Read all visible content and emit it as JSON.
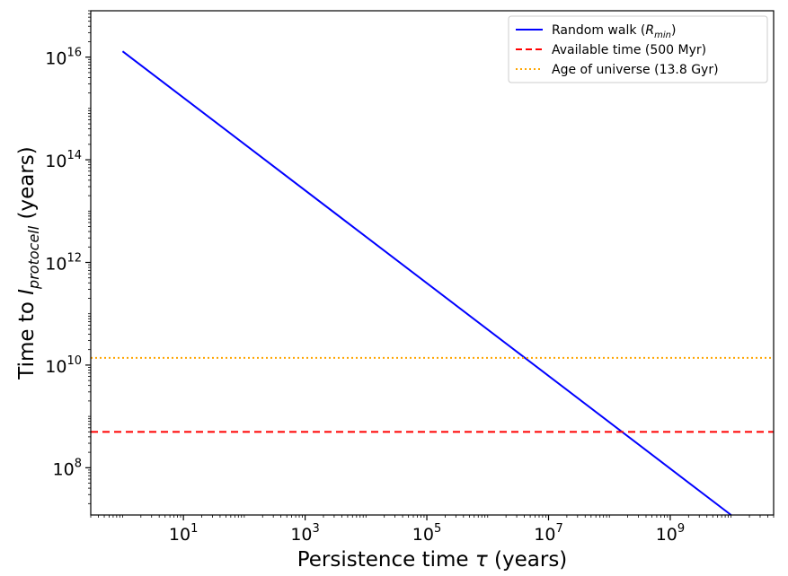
{
  "chart_data": {
    "type": "line",
    "x_scale": "log",
    "y_scale": "log",
    "xlim": [
      0.3,
      50000000000
    ],
    "ylim": [
      12000000,
      80000000000000000
    ],
    "xlabel": {
      "main": "Persistence time ",
      "sym": "τ",
      "unit": " (years)"
    },
    "ylabel": {
      "main": "Time to ",
      "sym": "I",
      "sub": "protocell",
      "unit": " (years)"
    },
    "x_ticks": [
      {
        "base": "10",
        "exp": "1",
        "value": 10
      },
      {
        "base": "10",
        "exp": "3",
        "value": 1000
      },
      {
        "base": "10",
        "exp": "5",
        "value": 100000
      },
      {
        "base": "10",
        "exp": "7",
        "value": 10000000
      },
      {
        "base": "10",
        "exp": "9",
        "value": 1000000000
      }
    ],
    "y_ticks": [
      {
        "base": "10",
        "exp": "8",
        "value": 100000000
      },
      {
        "base": "10",
        "exp": "10",
        "value": 10000000000
      },
      {
        "base": "10",
        "exp": "12",
        "value": 1000000000000
      },
      {
        "base": "10",
        "exp": "14",
        "value": 100000000000000
      },
      {
        "base": "10",
        "exp": "16",
        "value": 10000000000000000
      }
    ],
    "series": [
      {
        "name": "Random walk",
        "name_sym": "R",
        "name_sub": "min",
        "color": "#0000ff",
        "style": "solid",
        "x": [
          1,
          10000000000
        ],
        "y": [
          13000000000000000,
          12000000
        ]
      },
      {
        "name": "Available time (500 Myr)",
        "color": "#ff0000",
        "style": "dashed",
        "hline": 500000000
      },
      {
        "name": "Age of universe (13.8 Gyr)",
        "color": "#ffa500",
        "style": "dotted",
        "hline": 13800000000
      }
    ],
    "legend_position": "top-right",
    "grid": false
  }
}
